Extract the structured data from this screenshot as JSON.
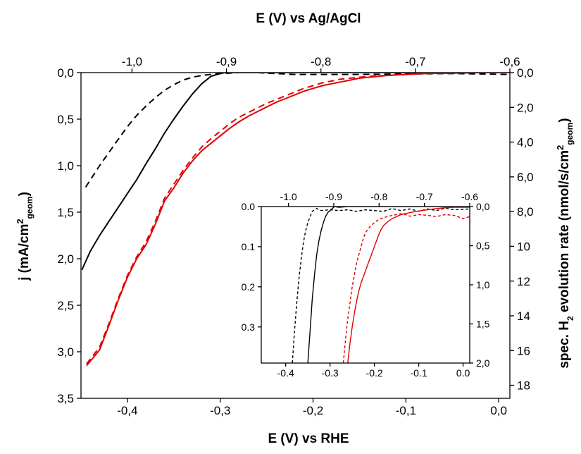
{
  "chart_data": {
    "type": "line",
    "top_xlabel": "E (V) vs Ag/AgCl",
    "xlabel": "E (V) vs RHE",
    "ylabel_main": "j (mA/cm",
    "ylabel_main_sup": "2",
    "ylabel_main_sub": "geom",
    "ylabel_main_end": ")",
    "ylabel_right_a": "spec. H",
    "ylabel_right_sub": "2",
    "ylabel_right_b": " evolution rate (nmol/s/cm",
    "ylabel_right_sup": "2",
    "ylabel_right_sub2": "geom",
    "ylabel_right_end": ")",
    "bottom_xlim": [
      -0.45,
      0.012
    ],
    "top_xlim": [
      -1.054,
      -0.6
    ],
    "left_ylim": [
      0,
      3.5
    ],
    "right_ylim": [
      0,
      18.75
    ],
    "bottom_ticks": [
      "-0,4",
      "-0,3",
      "-0,2",
      "-0,1",
      "0,0"
    ],
    "bottom_tick_values": [
      -0.4,
      -0.3,
      -0.2,
      -0.1,
      0.0
    ],
    "top_ticks": [
      "-1,0",
      "-0,9",
      "-0,8",
      "-0,7",
      "-0,6"
    ],
    "top_tick_values": [
      -1.0,
      -0.9,
      -0.8,
      -0.7,
      -0.6
    ],
    "left_ticks": [
      "0,0",
      "0,5",
      "1,0",
      "1,5",
      "2,0",
      "2,5",
      "3,0",
      "3,5"
    ],
    "left_tick_values": [
      0,
      0.5,
      1.0,
      1.5,
      2.0,
      2.5,
      3.0,
      3.5
    ],
    "right_ticks": [
      "0,0",
      "2,0",
      "4,0",
      "6,0",
      "8,0",
      "10",
      "12",
      "14",
      "16",
      "18"
    ],
    "right_tick_values": [
      0,
      2,
      4,
      6,
      8,
      10,
      12,
      14,
      16,
      18
    ],
    "colors": {
      "black": "#000000",
      "red": "#e00000"
    },
    "series": [
      {
        "color": "#000000",
        "style": "solid",
        "x": [
          -0.449,
          -0.44,
          -0.43,
          -0.42,
          -0.41,
          -0.4,
          -0.39,
          -0.38,
          -0.37,
          -0.36,
          -0.35,
          -0.34,
          -0.33,
          -0.32,
          -0.31,
          -0.3,
          -0.295,
          -0.28,
          -0.25,
          -0.2,
          -0.15,
          -0.1,
          -0.05,
          0.012
        ],
        "y": [
          2.12,
          1.92,
          1.75,
          1.6,
          1.45,
          1.3,
          1.15,
          0.98,
          0.82,
          0.65,
          0.5,
          0.36,
          0.23,
          0.12,
          0.04,
          0.01,
          0.0,
          0.0,
          0.0,
          0.0,
          0.0,
          0.0,
          0.0,
          0.0
        ]
      },
      {
        "color": "#000000",
        "style": "dashed",
        "x": [
          -0.445,
          -0.43,
          -0.42,
          -0.41,
          -0.4,
          -0.39,
          -0.38,
          -0.37,
          -0.36,
          -0.35,
          -0.34,
          -0.33,
          -0.32,
          -0.31,
          -0.3,
          -0.29,
          -0.28,
          -0.26,
          -0.22,
          -0.15,
          -0.05,
          0.012
        ],
        "y": [
          1.23,
          1.0,
          0.86,
          0.72,
          0.58,
          0.46,
          0.36,
          0.27,
          0.19,
          0.13,
          0.08,
          0.05,
          0.03,
          0.02,
          0.01,
          0.005,
          0.0,
          0.0,
          0.02,
          0.02,
          0.01,
          0.02
        ]
      },
      {
        "color": "#e00000",
        "style": "solid",
        "x": [
          -0.444,
          -0.43,
          -0.42,
          -0.41,
          -0.4,
          -0.39,
          -0.38,
          -0.37,
          -0.36,
          -0.35,
          -0.34,
          -0.33,
          -0.32,
          -0.31,
          -0.3,
          -0.29,
          -0.28,
          -0.27,
          -0.26,
          -0.25,
          -0.24,
          -0.23,
          -0.22,
          -0.21,
          -0.2,
          -0.19,
          -0.18,
          -0.17,
          -0.16,
          -0.15,
          -0.14,
          -0.12,
          -0.1,
          -0.08,
          -0.05,
          -0.02,
          0.012
        ],
        "y": [
          3.15,
          2.98,
          2.72,
          2.45,
          2.2,
          2.0,
          1.85,
          1.63,
          1.38,
          1.24,
          1.08,
          0.95,
          0.84,
          0.76,
          0.68,
          0.6,
          0.53,
          0.47,
          0.42,
          0.37,
          0.32,
          0.28,
          0.24,
          0.2,
          0.17,
          0.14,
          0.12,
          0.1,
          0.08,
          0.06,
          0.05,
          0.03,
          0.02,
          0.01,
          0.005,
          0.0,
          0.0
        ]
      },
      {
        "color": "#e00000",
        "style": "dashed",
        "x": [
          -0.444,
          -0.43,
          -0.42,
          -0.41,
          -0.4,
          -0.39,
          -0.38,
          -0.37,
          -0.36,
          -0.35,
          -0.34,
          -0.33,
          -0.32,
          -0.31,
          -0.3,
          -0.29,
          -0.28,
          -0.27,
          -0.26,
          -0.25,
          -0.24,
          -0.23,
          -0.22,
          -0.21,
          -0.2,
          -0.19,
          -0.18,
          -0.17,
          -0.16,
          -0.14,
          -0.12,
          -0.1,
          -0.08,
          -0.05,
          -0.02,
          0.012
        ],
        "y": [
          3.13,
          2.95,
          2.7,
          2.43,
          2.18,
          1.98,
          1.82,
          1.6,
          1.35,
          1.2,
          1.05,
          0.92,
          0.8,
          0.71,
          0.63,
          0.55,
          0.48,
          0.43,
          0.38,
          0.33,
          0.29,
          0.25,
          0.21,
          0.17,
          0.14,
          0.11,
          0.09,
          0.07,
          0.06,
          0.04,
          0.03,
          0.02,
          0.01,
          0.005,
          0.0,
          0.0
        ]
      }
    ],
    "inset": {
      "bottom_xlim": [
        -0.455,
        0.015
      ],
      "top_xlim": [
        -1.06,
        -0.6
      ],
      "left_ylim": [
        0,
        0.39
      ],
      "right_ylim": [
        0,
        2.0
      ],
      "bottom_ticks": [
        "-0.4",
        "-0.3",
        "-0.2",
        "-0.1",
        "0.0"
      ],
      "bottom_tick_values": [
        -0.4,
        -0.3,
        -0.2,
        -0.1,
        0.0
      ],
      "top_ticks": [
        "-1.0",
        "-0.9",
        "-0.8",
        "-0.7",
        "-0.6"
      ],
      "top_tick_values": [
        -1.0,
        -0.9,
        -0.8,
        -0.7,
        -0.6
      ],
      "left_ticks": [
        "0.0",
        "0.1",
        "0.2",
        "0.3"
      ],
      "left_tick_values": [
        0.0,
        0.1,
        0.2,
        0.3
      ],
      "right_ticks": [
        "0,0",
        "0,5",
        "1,0",
        "1,5",
        "2,0"
      ],
      "right_tick_values": [
        0.0,
        0.5,
        1.0,
        1.5,
        2.0
      ],
      "series": [
        {
          "color": "#000000",
          "style": "solid",
          "x": [
            -0.35,
            -0.345,
            -0.34,
            -0.335,
            -0.33,
            -0.325,
            -0.32,
            -0.315,
            -0.31,
            -0.305,
            -0.3,
            -0.295,
            -0.29,
            -0.28,
            -0.26,
            -0.23,
            -0.2,
            -0.15,
            -0.1,
            -0.05,
            0.015
          ],
          "y": [
            0.39,
            0.31,
            0.23,
            0.17,
            0.12,
            0.085,
            0.06,
            0.04,
            0.025,
            0.015,
            0.01,
            0.005,
            0.0,
            0.002,
            0.0,
            0.0,
            0.0,
            0.0,
            0.0,
            0.0,
            0.0
          ]
        },
        {
          "color": "#000000",
          "style": "dashed",
          "x": [
            -0.385,
            -0.38,
            -0.375,
            -0.37,
            -0.365,
            -0.36,
            -0.355,
            -0.35,
            -0.345,
            -0.34,
            -0.335,
            -0.33,
            -0.32,
            -0.3,
            -0.28,
            -0.26,
            -0.24,
            -0.22,
            -0.2,
            -0.18,
            -0.16,
            -0.14,
            -0.12,
            -0.1,
            -0.08,
            -0.06,
            -0.04,
            -0.02,
            0.015
          ],
          "y": [
            0.39,
            0.31,
            0.24,
            0.18,
            0.13,
            0.09,
            0.06,
            0.04,
            0.025,
            0.012,
            0.008,
            0.005,
            0.01,
            0.008,
            0.01,
            0.008,
            0.012,
            0.008,
            0.01,
            0.012,
            0.005,
            0.01,
            0.006,
            0.012,
            0.006,
            0.01,
            0.004,
            0.008,
            0.006
          ]
        },
        {
          "color": "#e00000",
          "style": "solid",
          "x": [
            -0.26,
            -0.255,
            -0.25,
            -0.245,
            -0.24,
            -0.235,
            -0.23,
            -0.225,
            -0.22,
            -0.215,
            -0.21,
            -0.205,
            -0.2,
            -0.195,
            -0.19,
            -0.185,
            -0.18,
            -0.17,
            -0.16,
            -0.15,
            -0.14,
            -0.12,
            -0.1,
            -0.08,
            -0.06,
            -0.04,
            -0.02,
            0.015
          ],
          "y": [
            0.39,
            0.34,
            0.3,
            0.265,
            0.235,
            0.21,
            0.19,
            0.175,
            0.16,
            0.145,
            0.13,
            0.115,
            0.1,
            0.085,
            0.07,
            0.058,
            0.048,
            0.038,
            0.03,
            0.025,
            0.02,
            0.015,
            0.011,
            0.008,
            0.005,
            0.003,
            0.002,
            0.002
          ]
        },
        {
          "color": "#e00000",
          "style": "dashed",
          "x": [
            -0.27,
            -0.265,
            -0.26,
            -0.255,
            -0.25,
            -0.245,
            -0.24,
            -0.235,
            -0.23,
            -0.225,
            -0.22,
            -0.21,
            -0.2,
            -0.19,
            -0.18,
            -0.17,
            -0.16,
            -0.15,
            -0.14,
            -0.13,
            -0.12,
            -0.1,
            -0.08,
            -0.06,
            -0.04,
            -0.02,
            0.0,
            0.015
          ],
          "y": [
            0.39,
            0.33,
            0.28,
            0.24,
            0.2,
            0.17,
            0.14,
            0.12,
            0.1,
            0.08,
            0.065,
            0.05,
            0.04,
            0.032,
            0.028,
            0.025,
            0.022,
            0.02,
            0.018,
            0.02,
            0.024,
            0.02,
            0.022,
            0.025,
            0.02,
            0.022,
            0.03,
            0.025
          ]
        }
      ]
    }
  }
}
